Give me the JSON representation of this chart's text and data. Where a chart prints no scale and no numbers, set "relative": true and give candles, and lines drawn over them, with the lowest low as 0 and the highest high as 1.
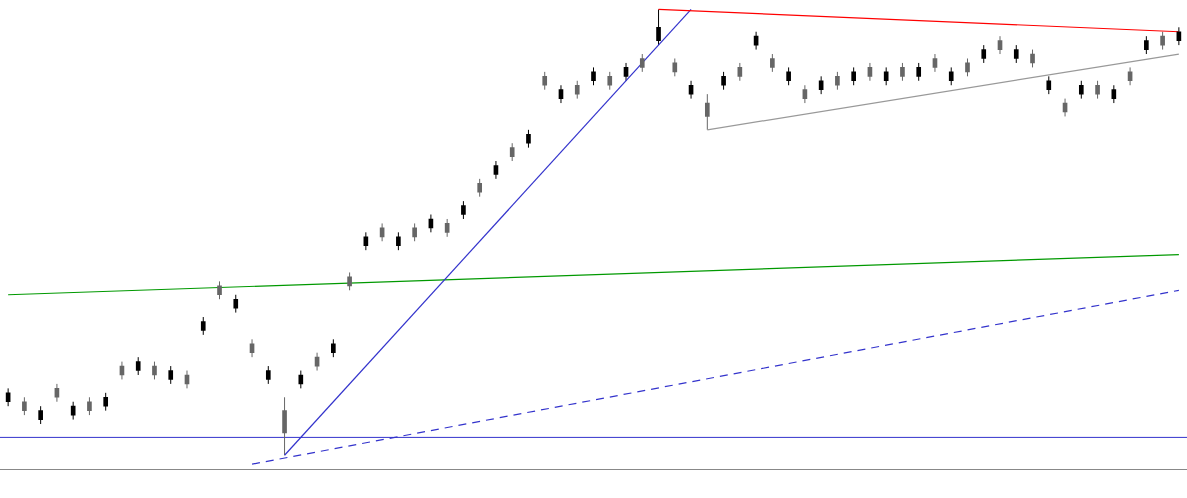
{
  "chart_data": {
    "type": "candlestick",
    "relative": true,
    "grid": false,
    "legend": false,
    "colors": [
      "#000000",
      "#666666",
      "#000000",
      "#666666",
      "#000000",
      "#666666",
      "#000000",
      "#666666",
      "#000000",
      "#666666",
      "#000000",
      "#666666",
      "#000000",
      "#666666",
      "#000000",
      "#666666",
      "#000000",
      "#666666",
      "#000000",
      "#666666",
      "#000000",
      "#666666",
      "#000000",
      "#666666",
      "#000000",
      "#666666",
      "#000000",
      "#666666",
      "#000000",
      "#666666",
      "#000000",
      "#666666",
      "#000000",
      "#666666",
      "#000000",
      "#666666",
      "#000000",
      "#666666",
      "#000000",
      "#666666",
      "#000000",
      "#666666",
      "#000000",
      "#666666",
      "#000000",
      "#666666",
      "#000000",
      "#666666",
      "#000000",
      "#666666",
      "#000000",
      "#666666",
      "#000000",
      "#666666",
      "#000000",
      "#666666",
      "#000000",
      "#666666",
      "#000000",
      "#666666",
      "#000000",
      "#666666",
      "#000000",
      "#666666",
      "#000000",
      "#666666",
      "#000000",
      "#666666",
      "#000000",
      "#666666",
      "#000000",
      "#666666",
      "#000000"
    ],
    "categories": [
      null,
      null,
      null,
      null,
      null,
      null,
      null,
      null,
      null,
      null,
      null,
      null,
      null,
      null,
      null,
      null,
      null,
      null,
      null,
      null,
      null,
      null,
      null,
      null,
      null,
      null,
      null,
      null,
      null,
      null,
      null,
      null,
      null,
      null,
      null,
      null,
      null,
      null,
      null,
      null,
      null,
      null,
      null,
      null,
      null,
      null,
      null,
      null,
      null,
      null,
      null,
      null,
      null,
      null,
      null,
      null,
      null,
      null,
      null,
      null,
      null,
      null,
      null,
      null,
      null,
      null,
      null,
      null,
      null,
      null,
      null,
      null,
      null
    ],
    "ohlc": [
      [
        0.12,
        0.15,
        0.11,
        0.14
      ],
      [
        0.12,
        0.13,
        0.09,
        0.1
      ],
      [
        0.08,
        0.11,
        0.07,
        0.1
      ],
      [
        0.15,
        0.16,
        0.12,
        0.13
      ],
      [
        0.09,
        0.12,
        0.08,
        0.11
      ],
      [
        0.12,
        0.13,
        0.09,
        0.1
      ],
      [
        0.11,
        0.14,
        0.1,
        0.13
      ],
      [
        0.2,
        0.21,
        0.17,
        0.18
      ],
      [
        0.19,
        0.22,
        0.18,
        0.21
      ],
      [
        0.2,
        0.21,
        0.17,
        0.18
      ],
      [
        0.17,
        0.2,
        0.16,
        0.19
      ],
      [
        0.18,
        0.19,
        0.15,
        0.16
      ],
      [
        0.28,
        0.31,
        0.27,
        0.3
      ],
      [
        0.38,
        0.39,
        0.35,
        0.36
      ],
      [
        0.33,
        0.36,
        0.32,
        0.35
      ],
      [
        0.25,
        0.26,
        0.22,
        0.23
      ],
      [
        0.17,
        0.2,
        0.16,
        0.19
      ],
      [
        0.1,
        0.13,
        0,
        0.05
      ],
      [
        0.16,
        0.19,
        0.15,
        0.18
      ],
      [
        0.22,
        0.23,
        0.19,
        0.2
      ],
      [
        0.23,
        0.26,
        0.22,
        0.25
      ],
      [
        0.4,
        0.41,
        0.37,
        0.38
      ],
      [
        0.47,
        0.5,
        0.46,
        0.49
      ],
      [
        0.51,
        0.52,
        0.48,
        0.49
      ],
      [
        0.47,
        0.5,
        0.46,
        0.49
      ],
      [
        0.51,
        0.52,
        0.48,
        0.49
      ],
      [
        0.51,
        0.54,
        0.5,
        0.53
      ],
      [
        0.52,
        0.53,
        0.49,
        0.5
      ],
      [
        0.54,
        0.57,
        0.53,
        0.56
      ],
      [
        0.61,
        0.62,
        0.58,
        0.59
      ],
      [
        0.63,
        0.66,
        0.62,
        0.65
      ],
      [
        0.69,
        0.7,
        0.66,
        0.67
      ],
      [
        0.7,
        0.73,
        0.69,
        0.72
      ],
      [
        0.85,
        0.86,
        0.82,
        0.83
      ],
      [
        0.8,
        0.83,
        0.79,
        0.82
      ],
      [
        0.83,
        0.84,
        0.8,
        0.81
      ],
      [
        0.84,
        0.87,
        0.83,
        0.86
      ],
      [
        0.85,
        0.86,
        0.82,
        0.83
      ],
      [
        0.85,
        0.88,
        0.84,
        0.87
      ],
      [
        0.89,
        0.9,
        0.86,
        0.87
      ],
      [
        0.93,
        1,
        0.92,
        0.96
      ],
      [
        0.88,
        0.89,
        0.85,
        0.86
      ],
      [
        0.81,
        0.84,
        0.8,
        0.83
      ],
      [
        0.79,
        0.81,
        0.73,
        0.76
      ],
      [
        0.83,
        0.86,
        0.82,
        0.85
      ],
      [
        0.87,
        0.88,
        0.84,
        0.85
      ],
      [
        0.92,
        0.95,
        0.91,
        0.94
      ],
      [
        0.89,
        0.9,
        0.86,
        0.87
      ],
      [
        0.84,
        0.87,
        0.83,
        0.86
      ],
      [
        0.82,
        0.83,
        0.79,
        0.8
      ],
      [
        0.82,
        0.85,
        0.81,
        0.84
      ],
      [
        0.85,
        0.86,
        0.82,
        0.83
      ],
      [
        0.84,
        0.87,
        0.83,
        0.86
      ],
      [
        0.87,
        0.88,
        0.84,
        0.85
      ],
      [
        0.84,
        0.87,
        0.83,
        0.86
      ],
      [
        0.87,
        0.88,
        0.84,
        0.85
      ],
      [
        0.85,
        0.88,
        0.84,
        0.87
      ],
      [
        0.89,
        0.9,
        0.86,
        0.87
      ],
      [
        0.84,
        0.87,
        0.83,
        0.86
      ],
      [
        0.88,
        0.89,
        0.85,
        0.86
      ],
      [
        0.89,
        0.92,
        0.88,
        0.91
      ],
      [
        0.93,
        0.94,
        0.9,
        0.91
      ],
      [
        0.89,
        0.92,
        0.88,
        0.91
      ],
      [
        0.9,
        0.91,
        0.87,
        0.88
      ],
      [
        0.82,
        0.85,
        0.81,
        0.84
      ],
      [
        0.79,
        0.8,
        0.76,
        0.77
      ],
      [
        0.81,
        0.84,
        0.8,
        0.83
      ],
      [
        0.83,
        0.84,
        0.8,
        0.81
      ],
      [
        0.8,
        0.83,
        0.79,
        0.82
      ],
      [
        0.86,
        0.87,
        0.83,
        0.84
      ],
      [
        0.91,
        0.94,
        0.9,
        0.93
      ],
      [
        0.94,
        0.95,
        0.91,
        0.92
      ],
      [
        0.93,
        0.96,
        0.92,
        0.95
      ]
    ],
    "series": [
      {
        "type": "line",
        "color": "#ff0000",
        "values": [
          null,
          null,
          null,
          null,
          null,
          null,
          null,
          null,
          null,
          null,
          null,
          null,
          null,
          null,
          null,
          null,
          null,
          null,
          null,
          null,
          null,
          null,
          null,
          null,
          null,
          null,
          null,
          null,
          null,
          null,
          null,
          null,
          null,
          null,
          null,
          null,
          null,
          null,
          null,
          null,
          1,
          null,
          null,
          null,
          null,
          null,
          null,
          null,
          null,
          null,
          null,
          null,
          null,
          null,
          null,
          null,
          null,
          null,
          null,
          null,
          null,
          null,
          null,
          null,
          null,
          null,
          null,
          null,
          null,
          null,
          null,
          null,
          0.95
        ]
      },
      {
        "type": "line",
        "color": "#999999",
        "values": [
          null,
          null,
          null,
          null,
          null,
          null,
          null,
          null,
          null,
          null,
          null,
          null,
          null,
          null,
          null,
          null,
          null,
          null,
          null,
          null,
          null,
          null,
          null,
          null,
          null,
          null,
          null,
          null,
          null,
          null,
          null,
          null,
          null,
          null,
          null,
          null,
          null,
          null,
          null,
          null,
          null,
          null,
          null,
          0.73,
          null,
          null,
          null,
          null,
          null,
          null,
          null,
          null,
          null,
          null,
          null,
          null,
          null,
          null,
          null,
          null,
          null,
          null,
          null,
          null,
          null,
          null,
          null,
          null,
          null,
          null,
          null,
          null,
          0.9
        ]
      },
      {
        "type": "line",
        "color": "#3333cc",
        "values": [
          null,
          null,
          null,
          null,
          null,
          null,
          null,
          null,
          null,
          null,
          null,
          null,
          null,
          null,
          null,
          null,
          null,
          0,
          null,
          null,
          null,
          null,
          null,
          null,
          null,
          null,
          null,
          null,
          null,
          null,
          null,
          null,
          null,
          null,
          null,
          null,
          null,
          null,
          null,
          null,
          null,
          null,
          1,
          null,
          null,
          null,
          null,
          null,
          null,
          null,
          null,
          null,
          null,
          null,
          null,
          null,
          null,
          null,
          null,
          null,
          null,
          null,
          null,
          null,
          null,
          null,
          null,
          null,
          null,
          null,
          null,
          null,
          null
        ]
      },
      {
        "type": "line",
        "color": "#009900",
        "values": [
          0.36,
          null,
          null,
          null,
          null,
          null,
          null,
          null,
          null,
          null,
          null,
          null,
          null,
          null,
          null,
          null,
          null,
          null,
          null,
          null,
          null,
          null,
          null,
          null,
          null,
          null,
          null,
          null,
          null,
          null,
          null,
          null,
          null,
          null,
          null,
          null,
          null,
          null,
          null,
          null,
          null,
          null,
          null,
          null,
          null,
          null,
          null,
          null,
          null,
          null,
          null,
          null,
          null,
          null,
          null,
          null,
          null,
          null,
          null,
          null,
          null,
          null,
          null,
          null,
          null,
          null,
          null,
          null,
          null,
          null,
          null,
          null,
          0.45
        ]
      },
      {
        "type": "line",
        "color": "#3333cc",
        "line_style": "dashed",
        "values": [
          null,
          null,
          null,
          null,
          null,
          null,
          null,
          null,
          null,
          null,
          null,
          null,
          null,
          null,
          null,
          -0.02,
          null,
          null,
          null,
          null,
          null,
          null,
          null,
          null,
          null,
          null,
          null,
          null,
          null,
          null,
          null,
          null,
          null,
          null,
          null,
          null,
          null,
          null,
          null,
          null,
          null,
          null,
          null,
          null,
          null,
          null,
          null,
          null,
          null,
          null,
          null,
          null,
          null,
          null,
          null,
          null,
          null,
          null,
          null,
          null,
          null,
          null,
          null,
          null,
          null,
          null,
          null,
          null,
          null,
          null,
          null,
          null,
          0.37
        ]
      }
    ],
    "ref_lines": [
      {
        "axis": "y",
        "value": 0.04,
        "color": "#3333cc"
      }
    ]
  }
}
